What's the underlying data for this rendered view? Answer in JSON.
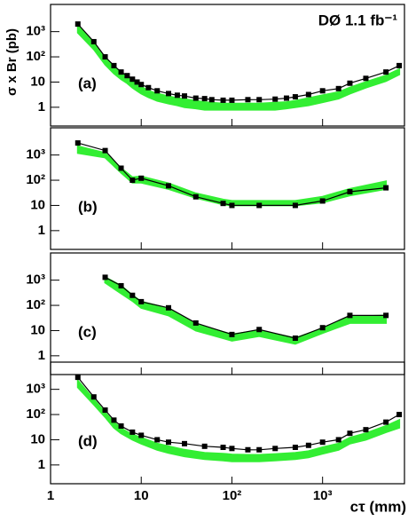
{
  "chart_data": [
    {
      "type": "line",
      "label": "(a)",
      "annotation": "DØ 1.1 fb⁻¹",
      "ylabel": "σ x Br (pb)",
      "xlim": [
        1,
        8000
      ],
      "xticks": [
        1,
        10,
        {
          "value": 100,
          "label": "10²"
        },
        {
          "value": 1000,
          "label": "10³"
        }
      ],
      "ylim": [
        0.18,
        12000
      ],
      "yticks": [
        1,
        10,
        {
          "value": 100,
          "label": "10²"
        },
        {
          "value": 1000,
          "label": "10³"
        }
      ],
      "log_x": true,
      "log_y": true,
      "x": [
        2,
        3,
        4,
        5,
        6,
        7,
        8,
        9,
        10,
        12,
        15,
        20,
        25,
        30,
        40,
        50,
        60,
        80,
        100,
        150,
        200,
        300,
        400,
        500,
        700,
        1000,
        1500,
        2000,
        3000,
        5000,
        7000
      ],
      "series": [
        {
          "color": "#000000",
          "values": [
            2000,
            400,
            100,
            45,
            25,
            18,
            13,
            10,
            8,
            6,
            4.5,
            3.5,
            3,
            2.8,
            2.3,
            2.2,
            2,
            1.9,
            1.9,
            2,
            2,
            2.1,
            2.3,
            2.6,
            3.2,
            4.5,
            5.5,
            9,
            14,
            25,
            45
          ]
        }
      ],
      "band": {
        "color": "#33ee33",
        "lower": [
          900,
          200,
          50,
          22,
          13,
          9,
          6,
          4.5,
          3.5,
          2.5,
          1.8,
          1.4,
          1.2,
          1.0,
          0.9,
          0.8,
          0.8,
          0.8,
          0.8,
          0.8,
          0.8,
          0.8,
          0.9,
          1.0,
          1.2,
          1.6,
          2.2,
          3.5,
          6,
          11,
          20
        ],
        "upper": [
          1700,
          350,
          90,
          40,
          22,
          15,
          11,
          8,
          6.5,
          4.5,
          3.5,
          2.7,
          2.3,
          2.1,
          1.8,
          1.6,
          1.5,
          1.4,
          1.4,
          1.4,
          1.4,
          1.5,
          1.6,
          1.8,
          2.3,
          3,
          4,
          6,
          10,
          18,
          32
        ]
      }
    },
    {
      "type": "line",
      "label": "(b)",
      "xlim": [
        1,
        8000
      ],
      "xticks": [
        1,
        10,
        {
          "value": 100,
          "label": "10²"
        },
        {
          "value": 1000,
          "label": "10³"
        }
      ],
      "ylim": [
        0.18,
        12000
      ],
      "yticks": [
        1,
        10,
        {
          "value": 100,
          "label": "10²"
        },
        {
          "value": 1000,
          "label": "10³"
        }
      ],
      "log_x": true,
      "log_y": true,
      "x": [
        2,
        4,
        6,
        8,
        10,
        20,
        40,
        80,
        100,
        200,
        500,
        1000,
        2000,
        5000
      ],
      "series": [
        {
          "color": "#000000",
          "values": [
            3000,
            1500,
            300,
            100,
            120,
            60,
            22,
            12,
            10,
            10,
            10,
            15,
            35,
            50
          ]
        }
      ],
      "band": {
        "color": "#33ee33",
        "lower": [
          1200,
          800,
          200,
          80,
          80,
          45,
          20,
          11,
          10,
          10,
          10,
          13,
          25,
          45
        ],
        "upper": [
          2200,
          1200,
          300,
          130,
          140,
          75,
          30,
          17,
          15,
          15,
          15,
          22,
          45,
          90
        ]
      }
    },
    {
      "type": "line",
      "label": "(c)",
      "xlim": [
        1,
        8000
      ],
      "xticks": [
        1,
        10,
        {
          "value": 100,
          "label": "10²"
        },
        {
          "value": 1000,
          "label": "10³"
        }
      ],
      "ylim": [
        0.18,
        12000
      ],
      "yticks": [
        1,
        10,
        {
          "value": 100,
          "label": "10²"
        },
        {
          "value": 1000,
          "label": "10³"
        }
      ],
      "log_x": true,
      "log_y": true,
      "x": [
        4,
        6,
        8,
        10,
        20,
        40,
        100,
        200,
        500,
        1000,
        2000,
        5000
      ],
      "series": [
        {
          "color": "#000000",
          "values": [
            1300,
            600,
            250,
            140,
            80,
            20,
            7,
            11,
            5,
            13,
            40,
            40
          ]
        }
      ],
      "band": {
        "color": "#33ee33",
        "lower": [
          800,
          300,
          150,
          80,
          40,
          10,
          4,
          6,
          3,
          8,
          20,
          20
        ],
        "upper": [
          1300,
          600,
          250,
          140,
          75,
          18,
          7,
          10,
          5,
          12,
          35,
          40
        ]
      }
    },
    {
      "type": "line",
      "label": "(d)",
      "xlabel": "cτ (mm)",
      "xlim": [
        1,
        8000
      ],
      "xticks": [
        1,
        10,
        {
          "value": 100,
          "label": "10²"
        },
        {
          "value": 1000,
          "label": "10³"
        }
      ],
      "ylim": [
        0.18,
        12000
      ],
      "yticks": [
        1,
        10,
        {
          "value": 100,
          "label": "10²"
        },
        {
          "value": 1000,
          "label": "10³"
        }
      ],
      "log_x": true,
      "log_y": true,
      "x": [
        2,
        3,
        4,
        5,
        6,
        8,
        10,
        15,
        20,
        30,
        50,
        80,
        100,
        150,
        200,
        300,
        500,
        700,
        1000,
        1500,
        2000,
        3000,
        5000,
        7000
      ],
      "series": [
        {
          "color": "#000000",
          "values": [
            3000,
            500,
            150,
            60,
            35,
            20,
            15,
            10,
            8,
            7,
            5.5,
            5,
            4.5,
            4,
            4,
            4.5,
            5,
            6,
            8,
            10,
            18,
            25,
            50,
            100
          ]
        }
      ],
      "band": {
        "color": "#33ee33",
        "lower": [
          1200,
          250,
          80,
          30,
          18,
          10,
          7,
          4,
          3,
          2.2,
          1.7,
          1.5,
          1.4,
          1.4,
          1.4,
          1.5,
          1.7,
          2,
          2.8,
          4,
          7,
          10,
          20,
          30
        ],
        "upper": [
          2200,
          400,
          120,
          50,
          28,
          16,
          12,
          7,
          5.5,
          4,
          3,
          2.8,
          2.6,
          2.5,
          2.5,
          2.7,
          3,
          3.5,
          5,
          7,
          12,
          18,
          35,
          60
        ]
      }
    }
  ]
}
